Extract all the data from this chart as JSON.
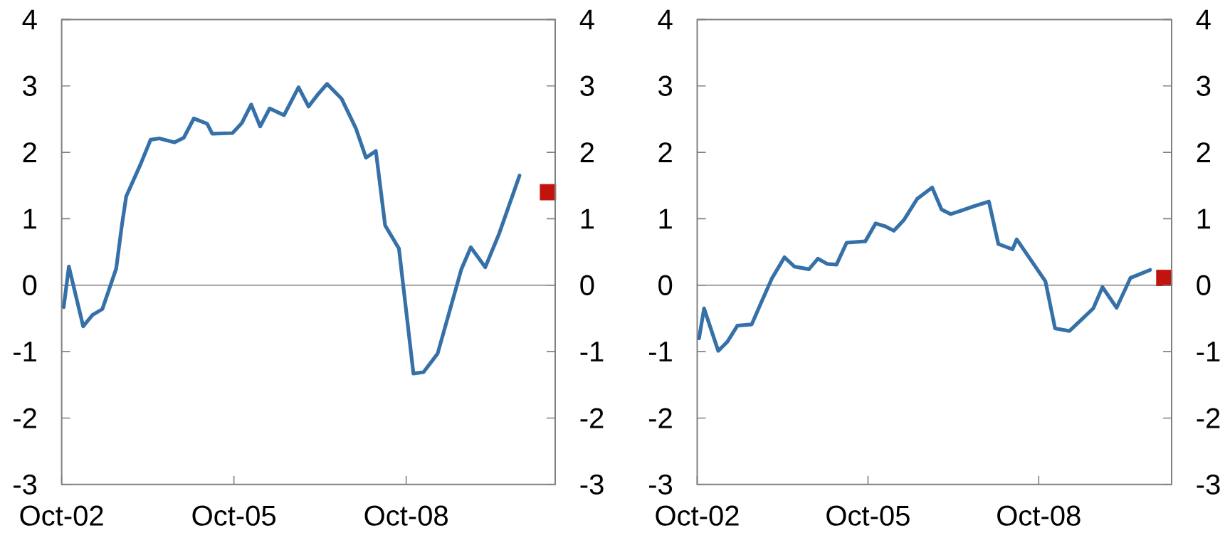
{
  "chart_data": [
    {
      "type": "line",
      "xlim": [
        "2002-10-01",
        "2011-05-07"
      ],
      "ylim": [
        -3,
        4
      ],
      "yticks": [
        -3,
        -2,
        -1,
        0,
        1,
        2,
        3,
        4
      ],
      "y2lim": [
        -3,
        4
      ],
      "y2ticks": [
        -3,
        -2,
        -1,
        0,
        1,
        2,
        3,
        4
      ],
      "xticks": [
        {
          "value": "2002-10-01",
          "label": "Oct-02"
        },
        {
          "value": "2005-10-01",
          "label": "Oct-05"
        },
        {
          "value": "2008-10-01",
          "label": "Oct-08"
        }
      ],
      "ref_lines": [
        {
          "axis": "y",
          "value": 0,
          "color": "#808080"
        }
      ],
      "series": [
        {
          "color": "#3571a8",
          "x": [
            "2002-10-14",
            "2002-11-16",
            "2003-02-15",
            "2003-04-14",
            "2003-06-17",
            "2003-09-13",
            "2003-10-19",
            "2003-11-16",
            "2004-02-15",
            "2004-04-19",
            "2004-06-13",
            "2004-09-17",
            "2004-11-16",
            "2005-01-19",
            "2005-04-14",
            "2005-05-16",
            "2005-09-22",
            "2005-11-20",
            "2006-01-19",
            "2006-03-17",
            "2006-05-16",
            "2006-08-16",
            "2006-11-16",
            "2007-01-19",
            "2007-03-22",
            "2007-05-16",
            "2007-08-16",
            "2007-11-16",
            "2008-01-19",
            "2008-03-22",
            "2008-05-20",
            "2008-08-16",
            "2008-11-16",
            "2009-01-19",
            "2009-04-19",
            "2009-09-17",
            "2009-11-16",
            "2010-02-16",
            "2010-05-16",
            "2010-09-22"
          ],
          "values": [
            -0.33,
            0.28,
            -0.62,
            -0.45,
            -0.36,
            0.25,
            0.9,
            1.34,
            1.82,
            2.19,
            2.21,
            2.15,
            2.22,
            2.51,
            2.43,
            2.28,
            2.29,
            2.44,
            2.72,
            2.39,
            2.66,
            2.56,
            2.98,
            2.69,
            2.88,
            3.03,
            2.81,
            2.36,
            1.92,
            2.02,
            0.9,
            0.55,
            -1.33,
            -1.31,
            -1.03,
            0.24,
            0.57,
            0.27,
            0.78,
            1.65
          ]
        },
        {
          "type": "scatter",
          "marker": "square",
          "color": "#c0140c",
          "x": [
            "2011-03-22"
          ],
          "values": [
            1.4
          ]
        }
      ]
    },
    {
      "type": "line",
      "xlim": [
        "2002-10-01",
        "2011-02-01"
      ],
      "ylim": [
        -3,
        4
      ],
      "yticks": [
        -3,
        -2,
        -1,
        0,
        1,
        2,
        3,
        4
      ],
      "y2lim": [
        -3,
        4
      ],
      "y2ticks": [
        -3,
        -2,
        -1,
        0,
        1,
        2,
        3,
        4
      ],
      "xticks": [
        {
          "value": "2002-10-01",
          "label": "Oct-02"
        },
        {
          "value": "2005-10-01",
          "label": "Oct-05"
        },
        {
          "value": "2008-10-01",
          "label": "Oct-08"
        }
      ],
      "ref_lines": [
        {
          "axis": "y",
          "value": 0,
          "color": "#808080"
        }
      ],
      "series": [
        {
          "color": "#3571a8",
          "x": [
            "2002-10-13",
            "2002-11-14",
            "2003-02-13",
            "2003-04-13",
            "2003-06-16",
            "2003-09-16",
            "2003-11-16",
            "2004-01-23",
            "2004-04-13",
            "2004-06-16",
            "2004-09-17",
            "2004-11-14",
            "2005-01-14",
            "2005-03-13",
            "2005-05-17",
            "2005-09-14",
            "2005-11-19",
            "2006-01-16",
            "2006-03-16",
            "2006-05-19",
            "2006-08-13",
            "2006-11-17",
            "2007-01-16",
            "2007-03-16",
            "2007-05-19",
            "2007-08-13",
            "2007-11-16",
            "2008-01-16",
            "2008-04-16",
            "2008-05-13",
            "2008-11-13",
            "2009-01-14",
            "2009-04-16",
            "2009-09-16",
            "2009-11-14",
            "2010-02-13",
            "2010-05-13",
            "2010-09-16"
          ],
          "values": [
            -0.8,
            -0.35,
            -0.99,
            -0.85,
            -0.61,
            -0.59,
            -0.26,
            0.1,
            0.42,
            0.28,
            0.24,
            0.4,
            0.32,
            0.31,
            0.64,
            0.66,
            0.93,
            0.89,
            0.82,
            0.98,
            1.3,
            1.47,
            1.14,
            1.07,
            1.12,
            1.19,
            1.26,
            0.62,
            0.54,
            0.69,
            0.06,
            -0.65,
            -0.69,
            -0.35,
            -0.03,
            -0.34,
            0.11,
            0.23
          ]
        },
        {
          "type": "scatter",
          "marker": "square",
          "color": "#c0140c",
          "x": [
            "2010-12-16"
          ],
          "values": [
            0.11
          ]
        }
      ]
    }
  ]
}
